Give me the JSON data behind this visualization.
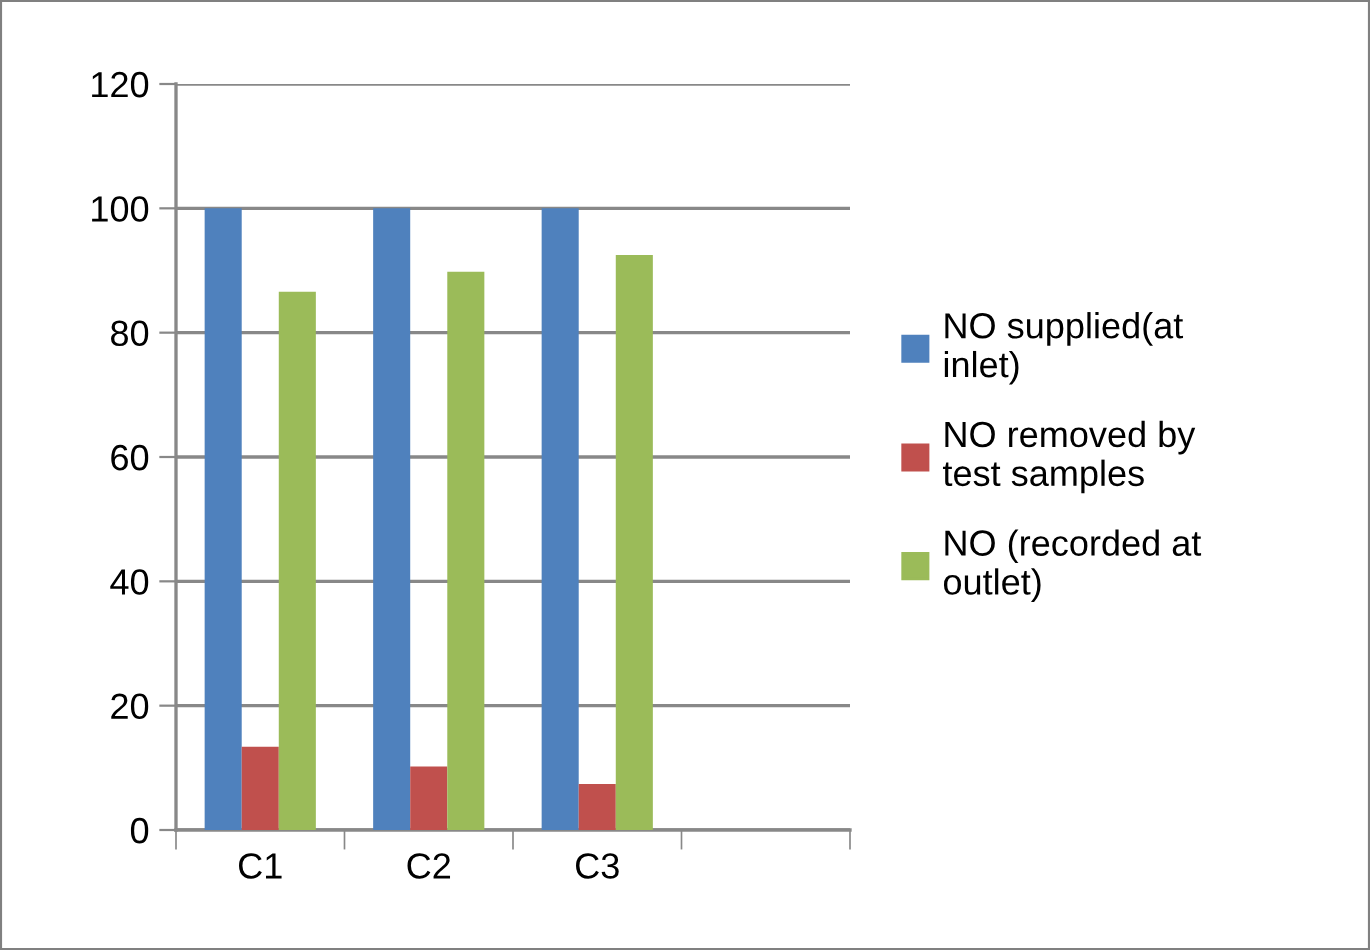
{
  "chart_data": {
    "type": "bar",
    "categories": [
      "C1",
      "C2",
      "C3",
      null
    ],
    "series": [
      {
        "name": "NO supplied(at inlet)",
        "color": "#4f81bd",
        "values": [
          100,
          100,
          100,
          null
        ]
      },
      {
        "name": "NO removed by test samples",
        "color": "#c0504d",
        "values": [
          13.4,
          10.2,
          7.4,
          null
        ]
      },
      {
        "name": "NO (recorded at outlet)",
        "color": "#9bbb59",
        "values": [
          86.6,
          89.8,
          92.5,
          null
        ]
      }
    ],
    "ylim": [
      0,
      120
    ],
    "yticks": [
      0,
      20,
      40,
      60,
      80,
      100,
      120
    ],
    "grid": "y",
    "legend": "right"
  }
}
